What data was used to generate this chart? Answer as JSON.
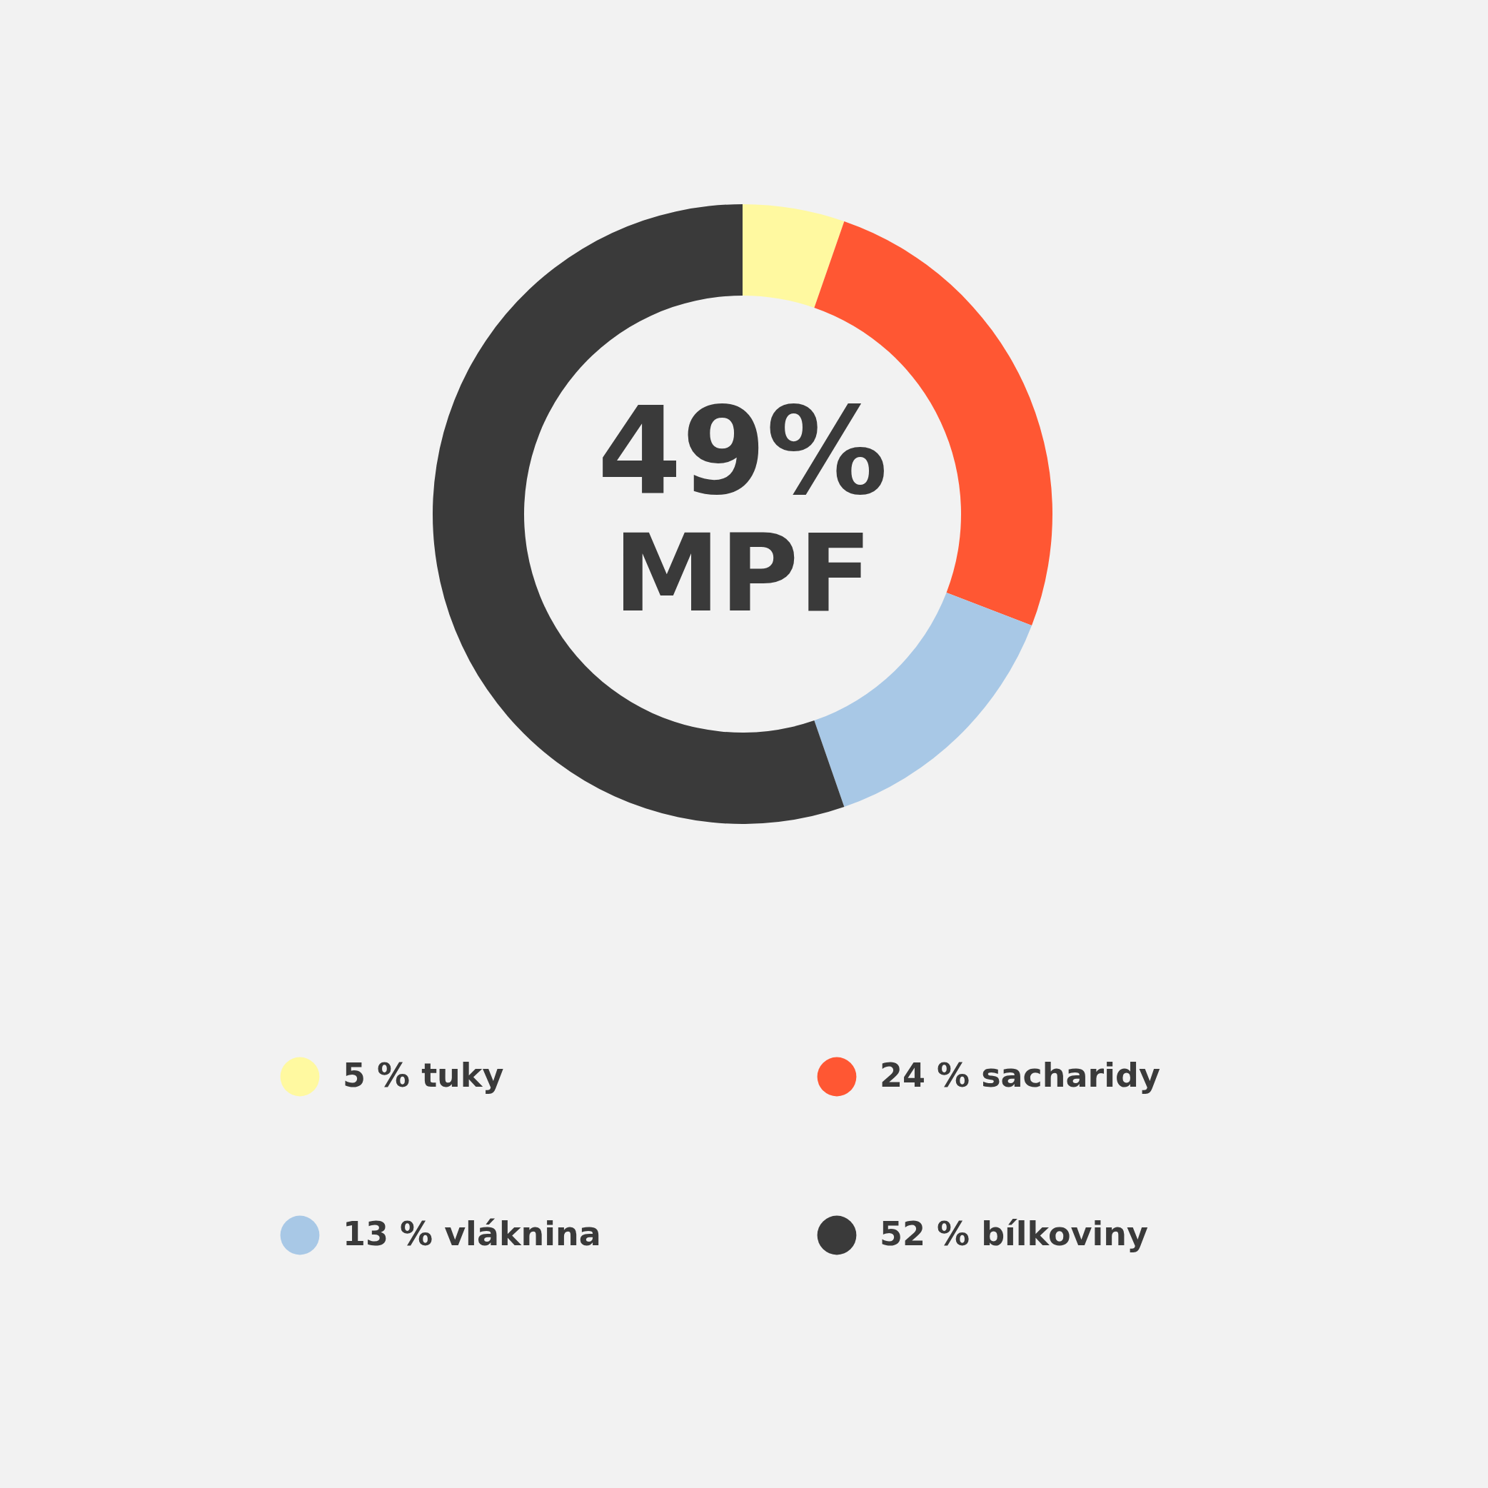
{
  "chart_data": {
    "type": "donut",
    "categories": [
      "5 % tuky",
      "24 % sacharidy",
      "13 % vláknina",
      "52 % bílkoviny"
    ],
    "values": [
      5,
      24,
      13,
      52
    ],
    "colors": [
      "#fff9a0",
      "#ff5733",
      "#a8c8e6",
      "#3a3a3a"
    ],
    "annotations": [
      "49%",
      "MPF"
    ],
    "legend": "bottom"
  }
}
